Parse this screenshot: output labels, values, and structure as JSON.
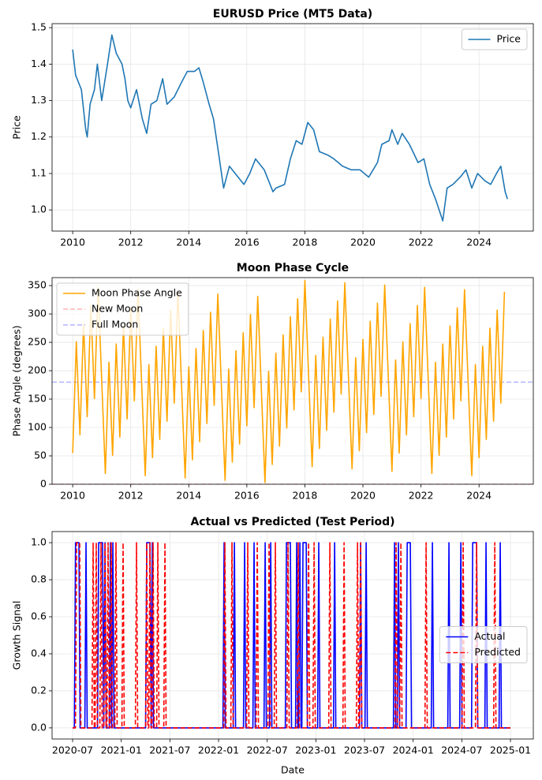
{
  "chart_data": [
    {
      "type": "line",
      "title": "EURUSD Price (MT5 Data)",
      "ylabel": "Price",
      "x": [
        2010.0,
        2010.1,
        2010.3,
        2010.45,
        2010.5,
        2010.6,
        2010.75,
        2010.85,
        2011.0,
        2011.2,
        2011.35,
        2011.5,
        2011.7,
        2011.8,
        2011.9,
        2012.0,
        2012.2,
        2012.4,
        2012.55,
        2012.7,
        2012.9,
        2013.1,
        2013.25,
        2013.5,
        2013.75,
        2013.95,
        2014.2,
        2014.35,
        2014.5,
        2014.7,
        2014.85,
        2015.0,
        2015.2,
        2015.4,
        2015.6,
        2015.9,
        2016.1,
        2016.3,
        2016.6,
        2016.9,
        2017.0,
        2017.3,
        2017.5,
        2017.7,
        2017.9,
        2018.1,
        2018.3,
        2018.5,
        2018.8,
        2019.0,
        2019.3,
        2019.6,
        2019.9,
        2020.2,
        2020.5,
        2020.65,
        2020.9,
        2021.0,
        2021.2,
        2021.35,
        2021.6,
        2021.9,
        2022.1,
        2022.3,
        2022.5,
        2022.75,
        2022.9,
        2023.1,
        2023.35,
        2023.55,
        2023.75,
        2023.95,
        2024.2,
        2024.4,
        2024.6,
        2024.75,
        2024.9,
        2024.98
      ],
      "series": [
        {
          "name": "Price",
          "color": "#1f77b4",
          "values": [
            1.44,
            1.37,
            1.33,
            1.22,
            1.2,
            1.29,
            1.33,
            1.4,
            1.3,
            1.4,
            1.48,
            1.43,
            1.4,
            1.36,
            1.3,
            1.28,
            1.33,
            1.25,
            1.21,
            1.29,
            1.3,
            1.36,
            1.29,
            1.31,
            1.35,
            1.38,
            1.38,
            1.39,
            1.35,
            1.29,
            1.25,
            1.17,
            1.06,
            1.12,
            1.1,
            1.07,
            1.1,
            1.14,
            1.11,
            1.05,
            1.06,
            1.07,
            1.14,
            1.19,
            1.18,
            1.24,
            1.22,
            1.16,
            1.15,
            1.14,
            1.12,
            1.11,
            1.11,
            1.09,
            1.13,
            1.18,
            1.19,
            1.22,
            1.18,
            1.21,
            1.18,
            1.13,
            1.14,
            1.07,
            1.03,
            0.97,
            1.06,
            1.07,
            1.09,
            1.11,
            1.06,
            1.1,
            1.08,
            1.07,
            1.1,
            1.12,
            1.05,
            1.03
          ]
        }
      ],
      "xlim": [
        2009.29,
        2025.87
      ],
      "xticks": [
        2010,
        2012,
        2014,
        2016,
        2018,
        2020,
        2022,
        2024
      ],
      "ylim": [
        0.942,
        1.511
      ],
      "yticks": [
        {
          "value": 1.0,
          "label": "1.0"
        },
        1.1,
        1.2,
        1.3,
        1.4,
        1.5
      ],
      "grid": true,
      "legend": "upper right"
    },
    {
      "type": "line",
      "title": "Moon Phase Cycle",
      "ylabel": "Phase Angle (degrees)",
      "x": [
        2010.0,
        2010.125,
        2010.25,
        2010.375,
        2010.5,
        2010.625,
        2010.75,
        2010.875,
        2011.0,
        2011.125,
        2011.25,
        2011.375,
        2011.5,
        2011.625,
        2011.75,
        2011.875,
        2012.0,
        2012.125,
        2012.25,
        2012.375,
        2012.5,
        2012.625,
        2012.75,
        2012.875,
        2013.0,
        2013.125,
        2013.25,
        2013.375,
        2013.5,
        2013.625,
        2013.75,
        2013.875,
        2014.0,
        2014.125,
        2014.25,
        2014.375,
        2014.5,
        2014.625,
        2014.75,
        2014.875,
        2015.0,
        2015.125,
        2015.25,
        2015.375,
        2015.5,
        2015.625,
        2015.75,
        2015.875,
        2016.0,
        2016.125,
        2016.25,
        2016.375,
        2016.5,
        2016.625,
        2016.75,
        2016.875,
        2017.0,
        2017.125,
        2017.25,
        2017.375,
        2017.5,
        2017.625,
        2017.75,
        2017.875,
        2018.0,
        2018.125,
        2018.25,
        2018.375,
        2018.5,
        2018.625,
        2018.75,
        2018.875,
        2019.0,
        2019.125,
        2019.25,
        2019.375,
        2019.5,
        2019.625,
        2019.75,
        2019.875,
        2020.0,
        2020.125,
        2020.25,
        2020.375,
        2020.5,
        2020.625,
        2020.75,
        2020.875,
        2021.0,
        2021.125,
        2021.25,
        2021.375,
        2021.5,
        2021.625,
        2021.75,
        2021.875,
        2022.0,
        2022.125,
        2022.25,
        2022.375,
        2022.5,
        2022.625,
        2022.75,
        2022.875,
        2023.0,
        2023.125,
        2023.25,
        2023.375,
        2023.5,
        2023.625,
        2023.75,
        2023.875,
        2024.0,
        2024.125,
        2024.25,
        2024.375,
        2024.5,
        2024.625,
        2024.75,
        2024.875
      ],
      "series": [
        {
          "name": "Moon Phase Angle",
          "color": "#ffa500",
          "values": [
            55,
            251,
            87,
            283,
            119,
            315,
            151,
            347,
            183,
            19,
            215,
            51,
            247,
            83,
            279,
            115,
            311,
            147,
            343,
            179,
            15,
            211,
            47,
            243,
            79,
            275,
            111,
            307,
            143,
            339,
            175,
            11,
            207,
            43,
            239,
            75,
            271,
            107,
            303,
            139,
            335,
            171,
            7,
            203,
            39,
            235,
            71,
            267,
            103,
            299,
            135,
            331,
            167,
            3,
            199,
            35,
            231,
            67,
            263,
            99,
            295,
            131,
            327,
            163,
            359,
            195,
            31,
            227,
            63,
            259,
            95,
            291,
            127,
            323,
            159,
            355,
            191,
            27,
            223,
            59,
            255,
            91,
            287,
            123,
            319,
            155,
            351,
            187,
            23,
            219,
            55,
            251,
            87,
            283,
            119,
            315,
            151,
            347,
            183,
            19,
            215,
            51,
            247,
            83,
            279,
            115,
            311,
            147,
            343,
            179,
            15,
            211,
            47,
            243,
            79,
            275,
            111,
            307,
            143,
            339
          ]
        }
      ],
      "hlines": [
        {
          "name": "New Moon",
          "value": 0,
          "color": "#ff0000",
          "opacity": 0.3,
          "dash": true
        },
        {
          "name": "Full Moon",
          "value": 180,
          "color": "#0000ff",
          "opacity": 0.3,
          "dash": true
        }
      ],
      "xlim": [
        2009.29,
        2025.87
      ],
      "xticks": [
        2010,
        2012,
        2014,
        2016,
        2018,
        2020,
        2022,
        2024
      ],
      "ylim": [
        0,
        364
      ],
      "yticks": [
        0,
        50,
        100,
        150,
        200,
        250,
        300,
        350
      ],
      "grid": true,
      "legend": "upper left"
    },
    {
      "type": "line",
      "title": "Actual vs Predicted (Test Period)",
      "ylabel": "Growth Signal",
      "xlabel": "Date",
      "series": [
        {
          "name": "Actual",
          "color": "#0000ff",
          "dash": false,
          "x": [
            2020.5,
            2020.518,
            2020.53,
            2020.565,
            2020.577,
            2020.626,
            2020.638,
            2020.65,
            2020.756,
            2020.768,
            2020.808,
            2020.82,
            2020.833,
            2020.845,
            2020.877,
            2020.889,
            2020.901,
            2020.914,
            2020.926,
            2021.25,
            2021.262,
            2021.295,
            2021.307,
            2021.319,
            2021.331,
            2022.045,
            2022.057,
            2022.069,
            2022.151,
            2022.163,
            2022.175,
            2022.256,
            2022.268,
            2022.28,
            2022.353,
            2022.365,
            2022.377,
            2022.467,
            2022.479,
            2022.491,
            2022.524,
            2022.536,
            2022.548,
            2022.686,
            2022.698,
            2022.738,
            2022.75,
            2022.791,
            2022.803,
            2022.815,
            2022.824,
            2022.836,
            2022.848,
            2022.856,
            2022.868,
            2022.901,
            2022.913,
            2023.018,
            2023.03,
            2023.042,
            2023.181,
            2023.193,
            2023.205,
            2023.448,
            2023.46,
            2023.472,
            2023.505,
            2023.517,
            2023.529,
            2023.797,
            2023.809,
            2023.821,
            2023.837,
            2023.849,
            2023.861,
            2023.927,
            2023.939,
            2023.971,
            2023.983,
            2024.186,
            2024.198,
            2024.21,
            2024.356,
            2024.368,
            2024.38,
            2024.478,
            2024.49,
            2024.502,
            2024.6,
            2024.612,
            2024.652,
            2024.664,
            2024.737,
            2024.749,
            2024.761,
            2024.883,
            2024.895,
            2024.907,
            2025.0
          ],
          "values": [
            0,
            0,
            1,
            1,
            0,
            0,
            1,
            0,
            0,
            1,
            1,
            0,
            1,
            0,
            0,
            1,
            0,
            1,
            0,
            0,
            1,
            1,
            0,
            1,
            0,
            0,
            1,
            0,
            0,
            1,
            0,
            0,
            1,
            0,
            0,
            1,
            0,
            0,
            1,
            0,
            0,
            1,
            0,
            0,
            1,
            1,
            0,
            0,
            1,
            0,
            0,
            1,
            0,
            0,
            1,
            1,
            0,
            0,
            1,
            0,
            0,
            1,
            0,
            0,
            1,
            0,
            0,
            1,
            0,
            0,
            1,
            0,
            0,
            1,
            0,
            0,
            1,
            1,
            0,
            0,
            1,
            0,
            0,
            1,
            0,
            0,
            1,
            0,
            0,
            1,
            1,
            0,
            0,
            1,
            0,
            0,
            1,
            0,
            0
          ]
        },
        {
          "name": "Predicted",
          "color": "#ff0000",
          "dash": true,
          "x": [
            2020.5,
            2020.529,
            2020.541,
            2020.573,
            2020.585,
            2020.699,
            2020.711,
            2020.723,
            2020.731,
            2020.743,
            2020.755,
            2020.78,
            2020.792,
            2020.804,
            2020.821,
            2020.833,
            2020.845,
            2020.853,
            2020.865,
            2020.877,
            2020.885,
            2020.897,
            2020.909,
            2020.934,
            2020.946,
            2020.958,
            2021.007,
            2021.019,
            2021.031,
            2021.145,
            2021.157,
            2021.169,
            2021.25,
            2021.262,
            2021.274,
            2021.283,
            2021.295,
            2021.307,
            2021.315,
            2021.327,
            2021.339,
            2021.364,
            2021.376,
            2021.388,
            2021.437,
            2021.449,
            2021.461,
            2022.053,
            2022.065,
            2022.077,
            2022.126,
            2022.138,
            2022.15,
            2022.288,
            2022.3,
            2022.312,
            2022.386,
            2022.398,
            2022.41,
            2022.507,
            2022.519,
            2022.531,
            2022.572,
            2022.584,
            2022.596,
            2022.702,
            2022.714,
            2022.726,
            2022.807,
            2022.819,
            2022.831,
            2022.913,
            2022.925,
            2022.937,
            2022.97,
            2022.982,
            2022.994,
            2023.132,
            2023.144,
            2023.156,
            2023.278,
            2023.29,
            2023.302,
            2023.416,
            2023.428,
            2023.44,
            2023.448,
            2023.46,
            2023.472,
            2023.813,
            2023.825,
            2023.837,
            2023.862,
            2023.874,
            2023.886,
            2024.121,
            2024.133,
            2024.145,
            2024.502,
            2024.514,
            2024.526,
            2024.64,
            2024.652,
            2024.664,
            2024.827,
            2024.839,
            2024.851,
            2025.0
          ],
          "values": [
            0,
            0,
            1,
            1,
            0,
            0,
            1,
            0,
            0,
            1,
            0,
            0,
            1,
            0,
            0,
            1,
            0,
            0,
            1,
            0,
            0,
            1,
            0,
            0,
            1,
            0,
            0,
            1,
            0,
            0,
            1,
            0,
            0,
            1,
            0,
            0,
            1,
            0,
            0,
            1,
            0,
            0,
            1,
            0,
            0,
            1,
            0,
            0,
            1,
            0,
            0,
            1,
            0,
            0,
            1,
            0,
            0,
            1,
            0,
            0,
            1,
            0,
            0,
            1,
            0,
            0,
            1,
            0,
            0,
            1,
            0,
            0,
            1,
            0,
            0,
            1,
            0,
            0,
            1,
            0,
            0,
            1,
            0,
            0,
            1,
            0,
            0,
            1,
            0,
            0,
            1,
            0,
            0,
            1,
            0,
            0,
            1,
            0,
            0,
            1,
            0,
            0,
            1,
            0,
            0,
            1,
            0,
            0
          ]
        }
      ],
      "xlim": [
        2020.289,
        2025.235
      ],
      "xticks": [
        {
          "value": 2020.5,
          "label": "2020-07"
        },
        {
          "value": 2021.0,
          "label": "2021-01"
        },
        {
          "value": 2021.5,
          "label": "2021-07"
        },
        {
          "value": 2022.0,
          "label": "2022-01"
        },
        {
          "value": 2022.5,
          "label": "2022-07"
        },
        {
          "value": 2023.0,
          "label": "2023-01"
        },
        {
          "value": 2023.5,
          "label": "2023-07"
        },
        {
          "value": 2024.0,
          "label": "2024-01"
        },
        {
          "value": 2024.5,
          "label": "2024-07"
        },
        {
          "value": 2025.0,
          "label": "2025-01"
        }
      ],
      "ylim": [
        -0.06,
        1.06
      ],
      "yticks": [
        {
          "value": 0,
          "label": "0.0"
        },
        0.2,
        0.4,
        0.6,
        0.8,
        {
          "value": 1,
          "label": "1.0"
        }
      ],
      "grid": true,
      "legend": "center right"
    }
  ]
}
